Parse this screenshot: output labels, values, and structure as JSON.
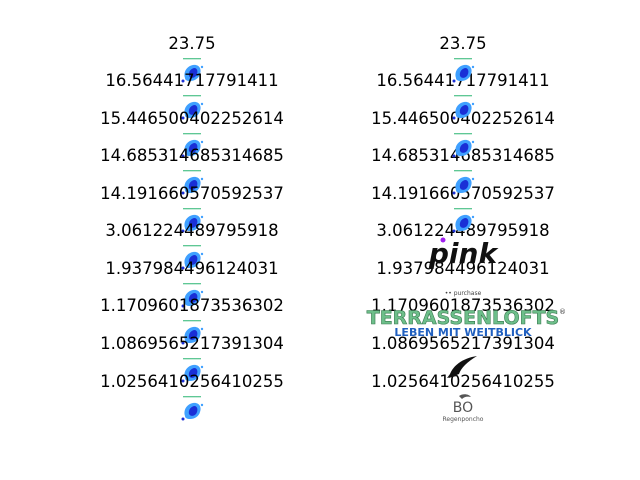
{
  "left_column": {
    "values": [
      "23.75",
      "16.564417177914​11",
      "15.446500402252614",
      "14.685314685314685",
      "14.191660570592537",
      "3.061224489795918",
      "1.937984496124031",
      "1.1709601873536302",
      "1.0869565217391304",
      "1.0256410256410255"
    ],
    "icon_name": "blue-splash-logo-icon",
    "colors": {
      "splash_dark": "#1a2fd6",
      "splash_light": "#3fa0ff",
      "accent_green": "#2bb673"
    }
  },
  "right_column": {
    "values": [
      "23.75",
      "16.56441717791411",
      "15.446500402252614",
      "14.685314685314685",
      "14.191660570592537",
      "3.061224489795918",
      "1.937984496124031",
      "1.1709601873536302",
      "1.0869565217391304",
      "1.0256410256410255"
    ],
    "logos": {
      "pink": "pink",
      "terrassenlofts": "TERRASSENLOFTS",
      "terrassen_sub": "LEBEN MIT WEITBLICK",
      "bo": "BO",
      "bo_sub": "Regenponcho"
    },
    "colors": {
      "pink_text": "#111111",
      "pink_dot": "#a020f0",
      "terrassen_green": "#6dbf8a",
      "terrassen_blue": "#2060c0",
      "arrow": "#111111"
    }
  }
}
